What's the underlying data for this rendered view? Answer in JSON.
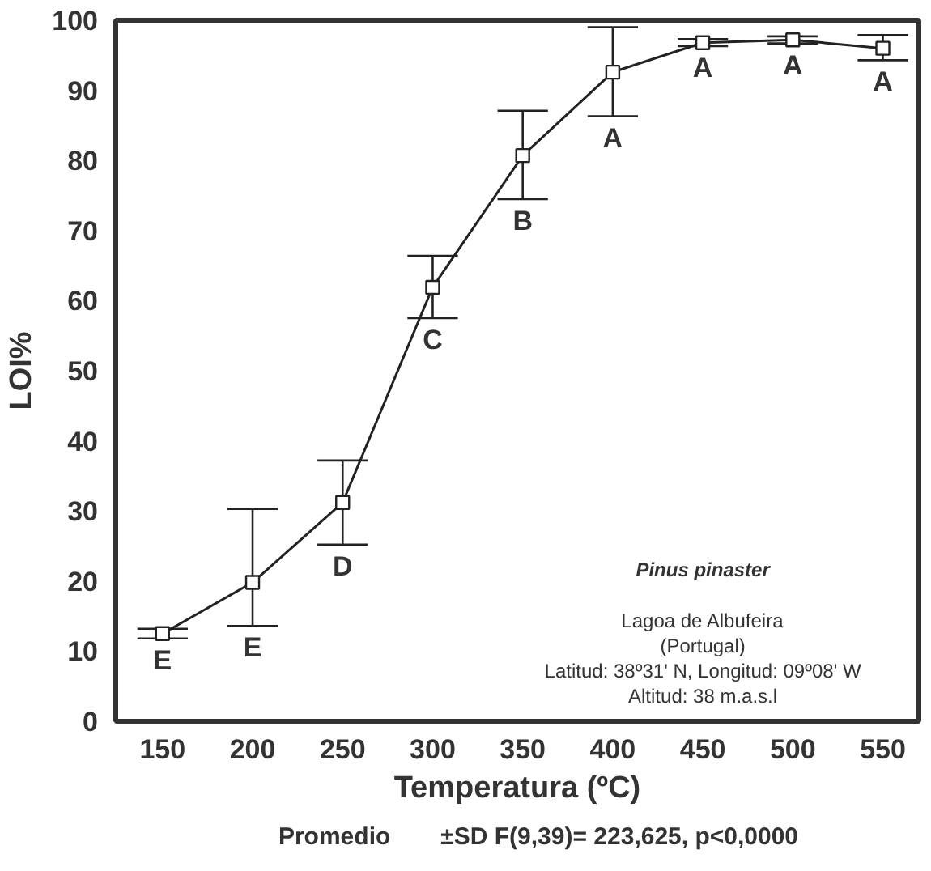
{
  "chart_data": {
    "type": "line",
    "xlabel": "Temperatura (ºC)",
    "ylabel": "LOI%",
    "x": [
      150,
      200,
      250,
      300,
      350,
      400,
      450,
      500,
      550
    ],
    "series": [
      {
        "name": "Promedio",
        "color": "#222222",
        "values": [
          12.5,
          19.8,
          31.2,
          61.9,
          80.7,
          92.6,
          96.8,
          97.2,
          96.0
        ],
        "errors": [
          [
            11.8,
            13.2
          ],
          [
            13.6,
            30.3
          ],
          [
            25.2,
            37.2
          ],
          [
            57.5,
            66.4
          ],
          [
            74.5,
            87.1
          ],
          [
            86.3,
            99.0
          ],
          [
            96.3,
            97.3
          ],
          [
            96.7,
            97.7
          ],
          [
            94.3,
            97.9
          ]
        ]
      }
    ],
    "xlim": [
      124,
      570
    ],
    "ylim": [
      0,
      100
    ],
    "xticks": [
      150,
      200,
      250,
      300,
      350,
      400,
      450,
      500,
      550
    ],
    "yticks": [
      0,
      10,
      20,
      30,
      40,
      50,
      60,
      70,
      80,
      90,
      100
    ],
    "marker": "square",
    "line_style": "solid",
    "grid": false,
    "legend": "bottom",
    "annotations": [
      {
        "text": "E",
        "x": 150,
        "y": 11.8
      },
      {
        "text": "E",
        "x": 200,
        "y": 13.6
      },
      {
        "text": "D",
        "x": 250,
        "y": 25.2
      },
      {
        "text": "C",
        "x": 300,
        "y": 57.5
      },
      {
        "text": "B",
        "x": 350,
        "y": 74.5
      },
      {
        "text": "A",
        "x": 400,
        "y": 86.3
      },
      {
        "text": "A",
        "x": 450,
        "y": 96.3
      },
      {
        "text": "A",
        "x": 500,
        "y": 96.7
      },
      {
        "text": "A",
        "x": 550,
        "y": 94.3
      },
      "Pinus pinaster",
      "Lagoa de Albufeira\n(Portugal)\nLatitud: 38º31' N, Longitud: 09º08' W\nAltitud: 38 m.a.s.l",
      "±SD F(9,39)= 223,625, p<0,0000"
    ]
  }
}
